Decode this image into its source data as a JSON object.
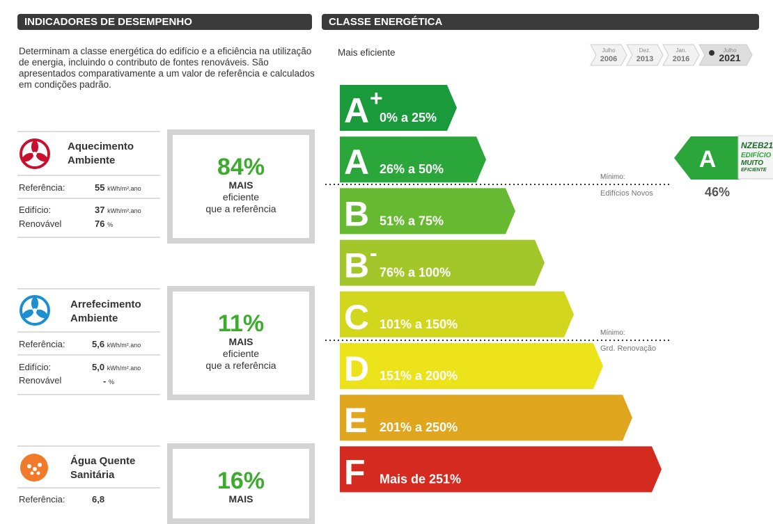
{
  "left": {
    "header": "INDICADORES DE DESEMPENHO",
    "intro": "Determinam a classe energética do edifício e a eficiência na utilização de energia, incluindo o contributo de fontes renováveis. São apresentados comparativamente a um valor de referência e calculados em condições padrão.",
    "indicators": [
      {
        "title": [
          "Aquecimento",
          "Ambiente"
        ],
        "reference_label": "Referência:",
        "reference_value": "55",
        "unit": "kWh/m².ano",
        "building_label": "Edifício:",
        "building_value": "37",
        "building_unit": "kWh/m².ano",
        "renewable_label": "Renovável",
        "renewable_value": "76",
        "renewable_unit": "%",
        "percent": "84%",
        "more": "MAIS",
        "efficient": "eficiente",
        "compare": "que a referência"
      },
      {
        "title": [
          "Arrefecimento",
          "Ambiente"
        ],
        "reference_label": "Referência:",
        "reference_value": "5,6",
        "unit": "kWh/m².ano",
        "building_label": "Edifício:",
        "building_value": "5,0",
        "building_unit": "kWh/m².ano",
        "renewable_label": "Renovável",
        "renewable_value": "-",
        "renewable_unit": "%",
        "percent": "11%",
        "more": "MAIS",
        "efficient": "eficiente",
        "compare": "que a referência"
      },
      {
        "title": [
          "Água Quente",
          "Sanitária"
        ],
        "reference_label": "Referência:",
        "reference_value": "6,8",
        "percent": "16%",
        "more": "MAIS"
      }
    ]
  },
  "right": {
    "header": "CLASSE ENERGÉTICA",
    "top_label": "Mais eficiente",
    "timeline": [
      {
        "month": "Julho",
        "year": "2006"
      },
      {
        "month": "Dez.",
        "year": "2013"
      },
      {
        "month": "Jan.",
        "year": "2016"
      },
      {
        "month": "Julho",
        "year": "2021"
      }
    ],
    "classes": [
      {
        "letter": "A",
        "sup": "+",
        "range": "0% a 25%",
        "color": "#1a9a3a"
      },
      {
        "letter": "A",
        "range": "26% a 50%",
        "color": "#2aa63a"
      },
      {
        "letter": "B",
        "range": "51% a 75%",
        "color": "#68b932"
      },
      {
        "letter": "B",
        "sup": "-",
        "range": "76% a 100%",
        "color": "#a3c72a"
      },
      {
        "letter": "C",
        "range": "101% a 150%",
        "color": "#d2d71e"
      },
      {
        "letter": "D",
        "range": "151% a 200%",
        "color": "#ece31a"
      },
      {
        "letter": "E",
        "range": "201% a 250%",
        "color": "#e0a61e"
      },
      {
        "letter": "F",
        "range": "Mais de 251%",
        "color": "#d42a20"
      }
    ],
    "minimums": [
      {
        "label": "Mínimo:",
        "name": "Edifícios Novos"
      },
      {
        "label": "Mínimo:",
        "name": "Grd. Renovação"
      }
    ],
    "result": {
      "letter": "A",
      "value": "46%",
      "nzeb": "NZEB21",
      "nzeb_lines": [
        "EDIFÍCIO",
        "MUITO",
        "EFICIENTE"
      ]
    }
  }
}
